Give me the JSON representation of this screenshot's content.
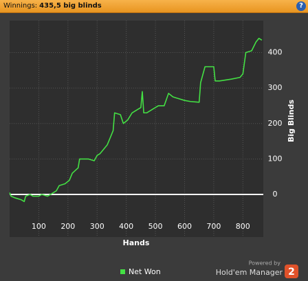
{
  "header": {
    "label": "Winnings:",
    "value": "435,5 big blinds",
    "help": "?"
  },
  "branding": {
    "powered_by": "Powered by",
    "product": "Hold'em Manager",
    "version": "2"
  },
  "chart_data": {
    "type": "line",
    "x_label": "Hands",
    "y_label": "Big Blinds",
    "xlim": [
      0,
      870
    ],
    "ylim": [
      -120,
      490
    ],
    "xticks": [
      100,
      200,
      300,
      400,
      500,
      600,
      700,
      800
    ],
    "yticks": [
      0,
      100,
      200,
      300,
      400
    ],
    "grid": true,
    "legend": "bottom",
    "series": [
      {
        "name": "Net Won",
        "color": "#44e044",
        "x": [
          0,
          5,
          20,
          40,
          50,
          55,
          70,
          80,
          100,
          110,
          130,
          150,
          160,
          170,
          190,
          205,
          215,
          235,
          240,
          270,
          290,
          300,
          310,
          320,
          335,
          345,
          355,
          360,
          380,
          390,
          405,
          420,
          440,
          450,
          455,
          460,
          470,
          490,
          510,
          530,
          545,
          560,
          580,
          600,
          620,
          650,
          655,
          670,
          700,
          705,
          720,
          760,
          790,
          800,
          810,
          830,
          845,
          855,
          865
        ],
        "values": [
          5,
          -5,
          -10,
          -15,
          -20,
          -5,
          0,
          -5,
          -5,
          0,
          -5,
          5,
          10,
          25,
          30,
          40,
          60,
          75,
          100,
          100,
          95,
          110,
          115,
          125,
          140,
          160,
          180,
          230,
          225,
          200,
          210,
          230,
          240,
          245,
          290,
          230,
          230,
          240,
          250,
          250,
          285,
          275,
          270,
          265,
          262,
          260,
          315,
          360,
          360,
          320,
          320,
          325,
          330,
          340,
          400,
          405,
          430,
          440,
          435
        ]
      }
    ]
  }
}
